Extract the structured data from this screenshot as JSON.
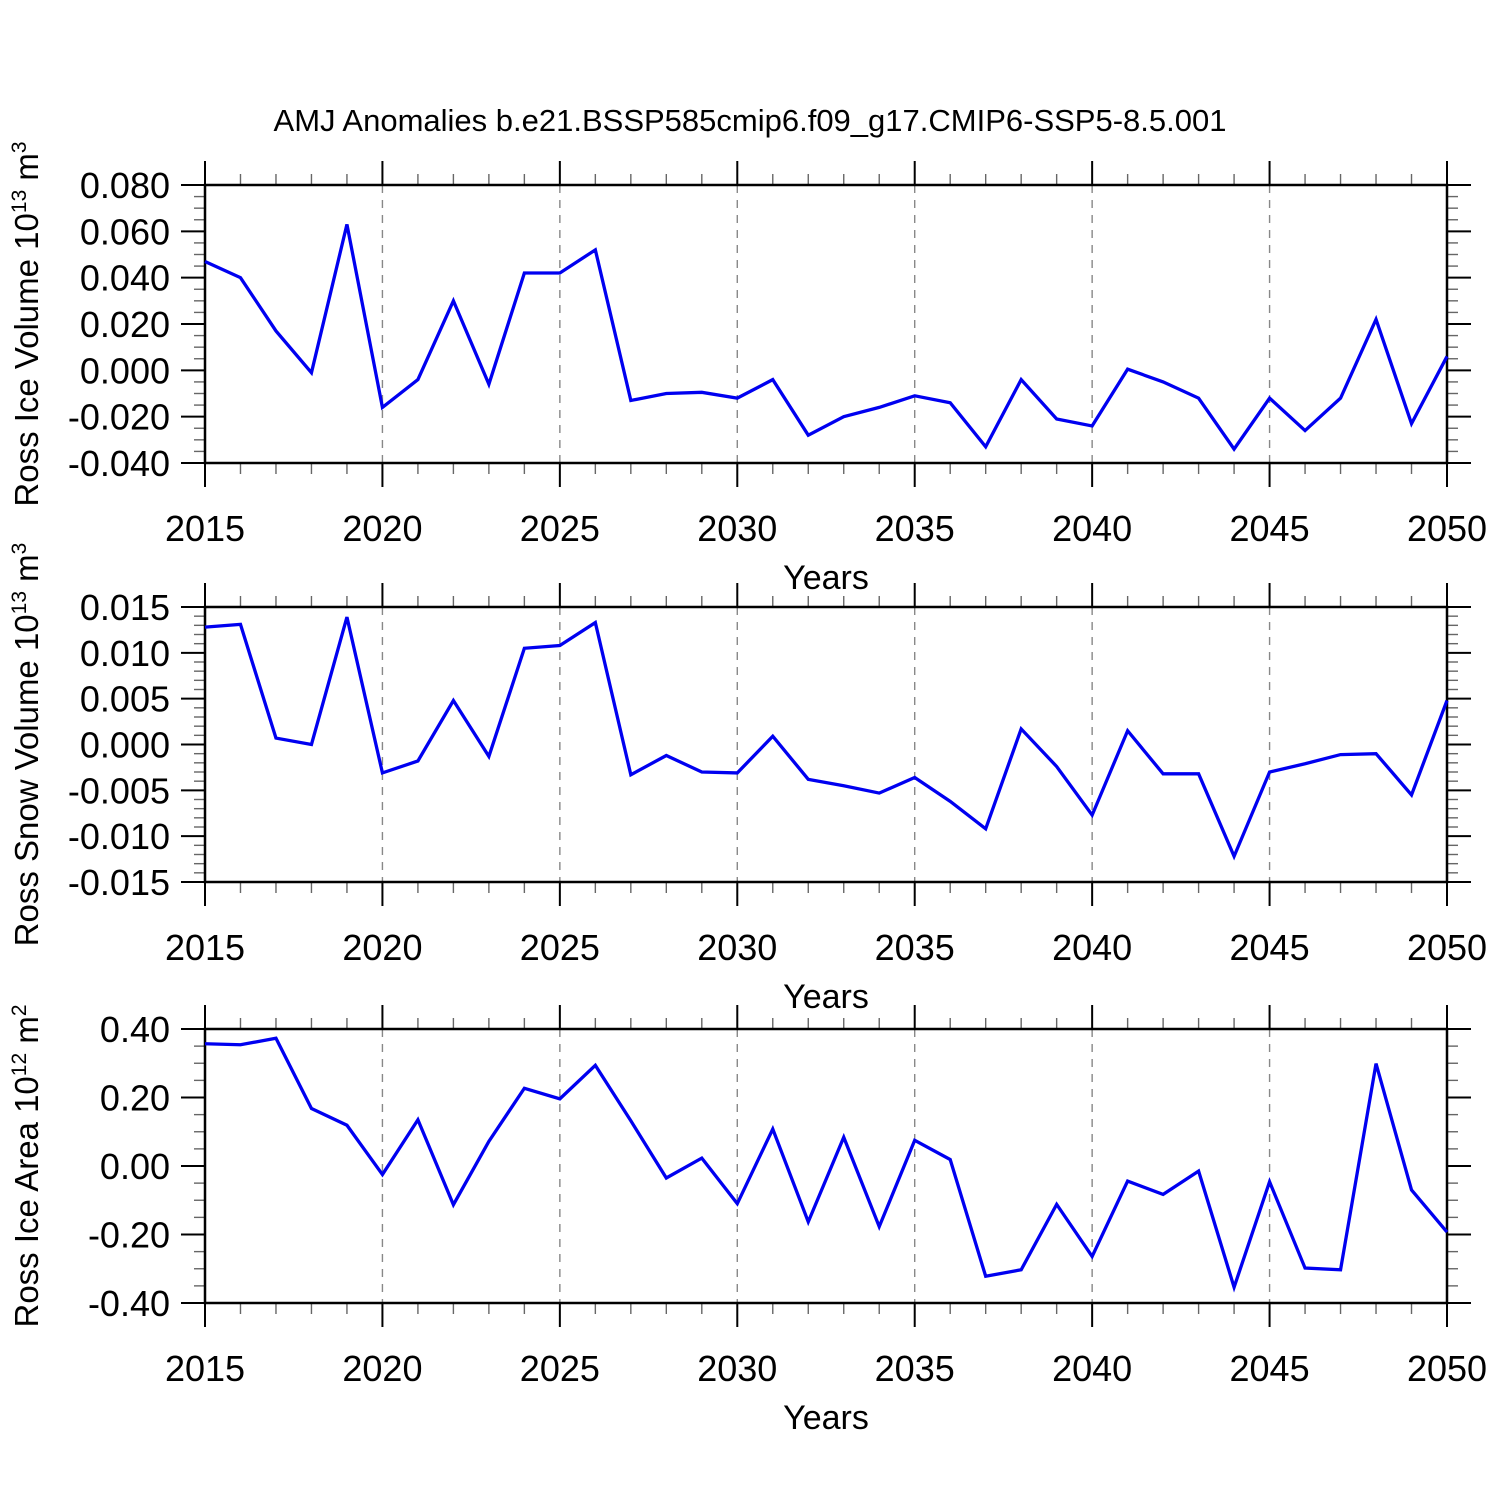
{
  "title": "AMJ Anomalies b.e21.BSSP585cmip6.f09_g17.CMIP6-SSP5-8.5.001",
  "colors": {
    "line": "#0000F0",
    "grid": "#888888",
    "minor_tick": "#666666",
    "axis": "#000000",
    "background": "#ffffff"
  },
  "chart_data": [
    {
      "type": "line",
      "name": "ross-ice-volume",
      "ylabel_plain": "Ross Ice Volume 10^13 m^3",
      "ylabel_parts": [
        {
          "t": "Ross Ice Volume 10"
        },
        {
          "t": "13",
          "sup": true
        },
        {
          "t": " m"
        },
        {
          "t": "3",
          "sup": true
        }
      ],
      "xlabel": "Years",
      "xlim": [
        2015,
        2050
      ],
      "x_major": 5,
      "x_minor": 1,
      "grid_x": [
        2020,
        2025,
        2030,
        2035,
        2040,
        2045
      ],
      "ylim": [
        -0.04,
        0.08
      ],
      "y_major": 0.02,
      "y_minor": 0.005,
      "y_decimals": 3,
      "legend": "none",
      "grid_on": "vertical-dashed-only",
      "x": [
        2015,
        2016,
        2017,
        2018,
        2019,
        2020,
        2021,
        2022,
        2023,
        2024,
        2025,
        2026,
        2027,
        2028,
        2029,
        2030,
        2031,
        2032,
        2033,
        2034,
        2035,
        2036,
        2037,
        2038,
        2039,
        2040,
        2041,
        2042,
        2043,
        2044,
        2045,
        2046,
        2047,
        2048,
        2049,
        2050
      ],
      "values": [
        0.047,
        0.04,
        0.017,
        -0.001,
        0.063,
        -0.016,
        -0.004,
        0.03,
        -0.006,
        0.042,
        0.042,
        0.052,
        -0.013,
        -0.01,
        -0.0095,
        -0.012,
        -0.004,
        -0.028,
        -0.02,
        -0.016,
        -0.011,
        -0.014,
        -0.033,
        -0.004,
        -0.021,
        -0.024,
        0.0005,
        -0.005,
        -0.012,
        -0.034,
        -0.012,
        -0.026,
        -0.012,
        0.022,
        -0.023,
        0.006
      ]
    },
    {
      "type": "line",
      "name": "ross-snow-volume",
      "ylabel_plain": "Ross Snow Volume 10^13 m^3",
      "ylabel_parts": [
        {
          "t": "Ross Snow Volume 10"
        },
        {
          "t": "13",
          "sup": true
        },
        {
          "t": " m"
        },
        {
          "t": "3",
          "sup": true
        }
      ],
      "xlabel": "Years",
      "xlim": [
        2015,
        2050
      ],
      "x_major": 5,
      "x_minor": 1,
      "grid_x": [
        2020,
        2025,
        2030,
        2035,
        2040,
        2045
      ],
      "ylim": [
        -0.015,
        0.015
      ],
      "y_major": 0.005,
      "y_minor": 0.001,
      "y_decimals": 3,
      "legend": "none",
      "grid_on": "vertical-dashed-only",
      "x": [
        2015,
        2016,
        2017,
        2018,
        2019,
        2020,
        2021,
        2022,
        2023,
        2024,
        2025,
        2026,
        2027,
        2028,
        2029,
        2030,
        2031,
        2032,
        2033,
        2034,
        2035,
        2036,
        2037,
        2038,
        2039,
        2040,
        2041,
        2042,
        2043,
        2044,
        2045,
        2046,
        2047,
        2048,
        2049,
        2050
      ],
      "values": [
        0.0128,
        0.0131,
        0.0007,
        0.0,
        0.0139,
        -0.0031,
        -0.0018,
        0.0048,
        -0.0013,
        0.0105,
        0.0108,
        0.0133,
        -0.0033,
        -0.0012,
        -0.003,
        -0.0031,
        0.0009,
        -0.0038,
        -0.0045,
        -0.0053,
        -0.0036,
        -0.0062,
        -0.0092,
        0.0017,
        -0.0024,
        -0.0077,
        0.0015,
        -0.0032,
        -0.0032,
        -0.0122,
        -0.003,
        -0.0021,
        -0.0011,
        -0.001,
        -0.0055,
        0.0048
      ]
    },
    {
      "type": "line",
      "name": "ross-ice-area",
      "ylabel_plain": "Ross Ice Area 10^12 m^2",
      "ylabel_parts": [
        {
          "t": "Ross Ice Area 10"
        },
        {
          "t": "12",
          "sup": true
        },
        {
          "t": " m"
        },
        {
          "t": "2",
          "sup": true
        }
      ],
      "xlabel": "Years",
      "xlim": [
        2015,
        2050
      ],
      "x_major": 5,
      "x_minor": 1,
      "grid_x": [
        2020,
        2025,
        2030,
        2035,
        2040,
        2045
      ],
      "ylim": [
        -0.4,
        0.4
      ],
      "y_major": 0.2,
      "y_minor": 0.05,
      "y_decimals": 2,
      "legend": "none",
      "grid_on": "vertical-dashed-only",
      "x": [
        2015,
        2016,
        2017,
        2018,
        2019,
        2020,
        2021,
        2022,
        2023,
        2024,
        2025,
        2026,
        2027,
        2028,
        2029,
        2030,
        2031,
        2032,
        2033,
        2034,
        2035,
        2036,
        2037,
        2038,
        2039,
        2040,
        2041,
        2042,
        2043,
        2044,
        2045,
        2046,
        2047,
        2048,
        2049,
        2050
      ],
      "values": [
        0.357,
        0.354,
        0.373,
        0.168,
        0.119,
        -0.025,
        0.135,
        -0.113,
        0.072,
        0.227,
        0.196,
        0.294,
        0.132,
        -0.035,
        0.023,
        -0.11,
        0.108,
        -0.163,
        0.084,
        -0.177,
        0.075,
        0.019,
        -0.322,
        -0.303,
        -0.112,
        -0.264,
        -0.044,
        -0.083,
        -0.015,
        -0.354,
        -0.046,
        -0.298,
        -0.303,
        0.299,
        -0.07,
        -0.193
      ]
    }
  ]
}
